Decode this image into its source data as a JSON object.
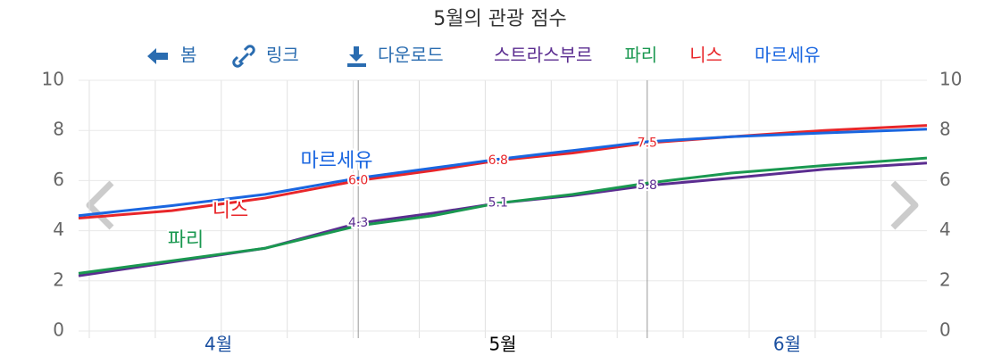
{
  "toolbar": {
    "back": "봄",
    "link": "링크",
    "download": "다운로드"
  },
  "chart_data": {
    "type": "line",
    "title": "5월의 관광 점수",
    "x": [
      0,
      10,
      20,
      30,
      38,
      45,
      53,
      61,
      70,
      80,
      91
    ],
    "xlim": [
      0,
      91
    ],
    "xticks": [
      {
        "value": 15,
        "label": "4월"
      },
      {
        "value": 45.5,
        "label": "5월"
      },
      {
        "value": 76,
        "label": "6월"
      }
    ],
    "highlight_xtick": 1,
    "month_boundaries": [
      30,
      61
    ],
    "ylim": [
      0,
      10
    ],
    "yticks": [
      0,
      2,
      4,
      6,
      8,
      10
    ],
    "grid": true,
    "series": [
      {
        "name": "스트라스부르",
        "color": "#5b2d90",
        "values": [
          2.2,
          2.75,
          3.3,
          4.3,
          4.7,
          5.1,
          5.4,
          5.8,
          6.1,
          6.45,
          6.7
        ],
        "value_labels": [
          null,
          null,
          null,
          "4.3",
          null,
          "5.1",
          null,
          "5.8",
          null,
          null,
          null
        ]
      },
      {
        "name": "파리",
        "color": "#1a9850",
        "values": [
          2.3,
          2.8,
          3.3,
          4.2,
          4.6,
          5.1,
          5.45,
          5.9,
          6.3,
          6.6,
          6.9
        ]
      },
      {
        "name": "니스",
        "color": "#e8262a",
        "values": [
          4.5,
          4.8,
          5.3,
          6.0,
          6.4,
          6.8,
          7.1,
          7.5,
          7.75,
          8.0,
          8.2
        ],
        "value_labels": [
          null,
          null,
          null,
          "6.0",
          null,
          "6.8",
          null,
          "7.5",
          null,
          null,
          null
        ]
      },
      {
        "name": "마르세유",
        "color": "#1a66e0",
        "values": [
          4.6,
          5.0,
          5.45,
          6.1,
          6.5,
          6.85,
          7.2,
          7.55,
          7.75,
          7.9,
          8.05
        ]
      }
    ]
  }
}
